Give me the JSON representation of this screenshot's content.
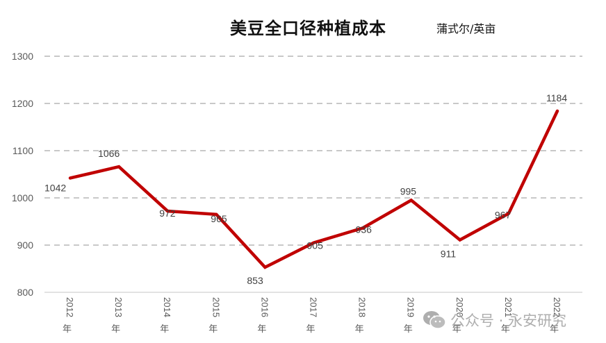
{
  "header": {
    "title": "美豆全口径种植成本",
    "unit": "蒲式尔/英亩"
  },
  "watermark": {
    "icon": "wechat-icon",
    "text": "公众号 · 永安研究"
  },
  "colors": {
    "line": "#C00000",
    "grid": "#A6A6A6",
    "axis": "#D9D9D9",
    "tick_text": "#595959",
    "label_text": "#404040"
  },
  "chart_data": {
    "type": "line",
    "title": "美豆全口径种植成本",
    "subtitle": "蒲式尔/英亩",
    "xlabel": "",
    "ylabel": "",
    "categories": [
      "2012年",
      "2013年",
      "2014年",
      "2015年",
      "2016年",
      "2017年",
      "2018年",
      "2019年",
      "2020年",
      "2021年",
      "2022年"
    ],
    "series": [
      {
        "name": "美豆全口径种植成本",
        "values": [
          1042,
          1066,
          972,
          965,
          853,
          905,
          936,
          995,
          911,
          967,
          1184
        ],
        "color": "#C00000"
      }
    ],
    "ylim": [
      800,
      1300
    ],
    "yticks": [
      800,
      900,
      1000,
      1100,
      1200,
      1300
    ],
    "grid": true,
    "grid_style": "dashed horizontal",
    "legend": "none",
    "data_labels": true
  }
}
